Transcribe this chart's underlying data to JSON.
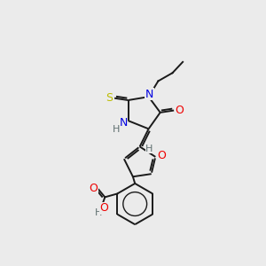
{
  "background_color": "#ebebeb",
  "bond_color": "#1a1a1a",
  "atom_colors": {
    "N": "#0000e0",
    "O": "#ee0000",
    "S": "#bbbb00",
    "C": "#1a1a1a",
    "H": "#607070"
  },
  "lw": 1.4,
  "fs": 8.5,
  "figsize": [
    3.0,
    3.0
  ],
  "dpi": 100
}
